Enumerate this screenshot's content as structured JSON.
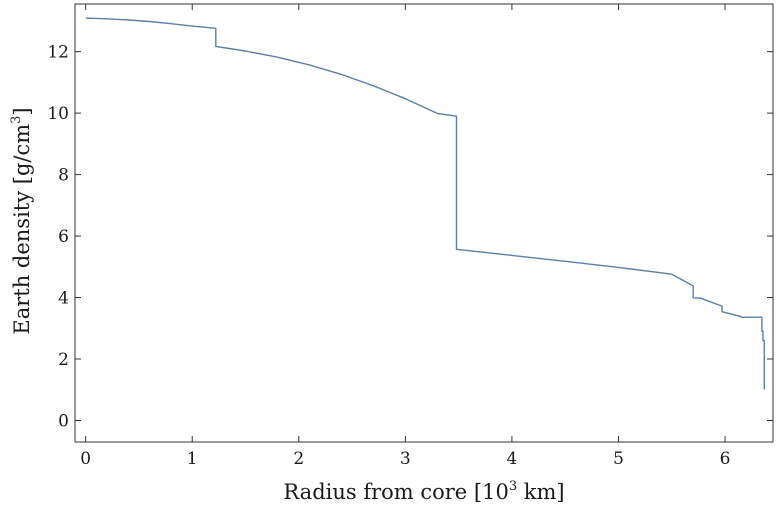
{
  "chart_data": {
    "type": "line",
    "title": "",
    "xlabel": "Radius from core [10",
    "xlabel_sup": "3",
    "xlabel_tail": " km]",
    "ylabel": "Earth density [g/cm",
    "ylabel_sup": "3",
    "ylabel_tail": "]",
    "xlim": [
      -0.1,
      6.45
    ],
    "ylim": [
      -0.7,
      13.55
    ],
    "xticks": [
      0,
      1,
      2,
      3,
      4,
      5,
      6
    ],
    "xtick_labels": [
      "0",
      "1",
      "2",
      "3",
      "4",
      "5",
      "6"
    ],
    "yticks": [
      0,
      2,
      4,
      6,
      8,
      10,
      12
    ],
    "ytick_labels": [
      "0",
      "2",
      "4",
      "6",
      "8",
      "10",
      "12"
    ],
    "grid": false,
    "legend": "none",
    "line_color": "#5b7fa6",
    "series": [
      {
        "x": [
          0,
          0.2,
          0.4,
          0.6,
          0.8,
          1.0,
          1.221,
          1.221,
          1.5,
          1.8,
          2.1,
          2.4,
          2.7,
          3.0,
          3.3,
          3.48,
          3.48,
          4.0,
          4.5,
          5.0,
          5.5,
          5.701,
          5.701,
          5.771,
          5.771,
          5.971,
          5.971,
          6.151,
          6.151,
          6.346,
          6.346,
          6.356,
          6.356,
          6.368,
          6.368,
          6.371
        ],
        "y": [
          13.09,
          13.07,
          13.03,
          12.98,
          12.91,
          12.83,
          12.76,
          12.17,
          12.02,
          11.82,
          11.57,
          11.26,
          10.89,
          10.47,
          9.99,
          9.9,
          5.57,
          5.37,
          5.18,
          4.98,
          4.76,
          4.38,
          3.99,
          3.98,
          3.98,
          3.72,
          3.54,
          3.38,
          3.36,
          3.36,
          2.9,
          2.9,
          2.6,
          2.6,
          1.02,
          1.02
        ]
      }
    ]
  }
}
